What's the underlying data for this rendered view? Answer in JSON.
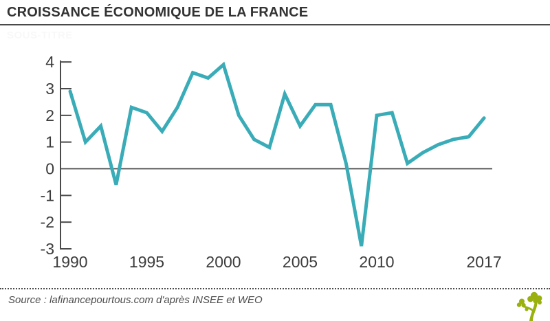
{
  "header": {
    "title": "CROISSANCE ÉCONOMIQUE DE LA FRANCE",
    "subtitle": "SOUS-TITRE"
  },
  "footer": {
    "source_text": "Source : lafinancepourtous.com d'après INSEE et WEO",
    "logo": "tree-icon"
  },
  "colors": {
    "line": "#3aacb8",
    "axis": "#4a4a4a",
    "tick_text": "#3c3c3c",
    "title_text": "#333333",
    "subtitle_text": "#f8f8f8",
    "source_text": "#4b4b4b",
    "logo_green": "#99b00f",
    "background": "#ffffff"
  },
  "chart_data": {
    "type": "line",
    "title": "CROISSANCE ÉCONOMIQUE DE LA FRANCE",
    "xlabel": "",
    "ylabel": "",
    "x": [
      1990,
      1991,
      1992,
      1993,
      1994,
      1995,
      1996,
      1997,
      1998,
      1999,
      2000,
      2001,
      2002,
      2003,
      2004,
      2005,
      2006,
      2007,
      2008,
      2009,
      2010,
      2011,
      2012,
      2013,
      2014,
      2015,
      2016,
      2017
    ],
    "values": [
      2.9,
      1.0,
      1.6,
      -0.6,
      2.3,
      2.1,
      1.4,
      2.3,
      3.6,
      3.4,
      3.9,
      2.0,
      1.1,
      0.8,
      2.8,
      1.6,
      2.4,
      2.4,
      0.2,
      -2.9,
      2.0,
      2.1,
      0.2,
      0.6,
      0.9,
      1.1,
      1.2,
      1.9
    ],
    "ylim": [
      -3,
      4
    ],
    "xlim": [
      1990,
      2017
    ],
    "yticks": [
      4,
      3,
      2,
      1,
      0,
      -1,
      -2,
      -3
    ],
    "xticks": [
      1990,
      1995,
      2000,
      2005,
      2010,
      2017
    ],
    "grid": false,
    "legend_position": "none",
    "zero_baseline": true
  }
}
